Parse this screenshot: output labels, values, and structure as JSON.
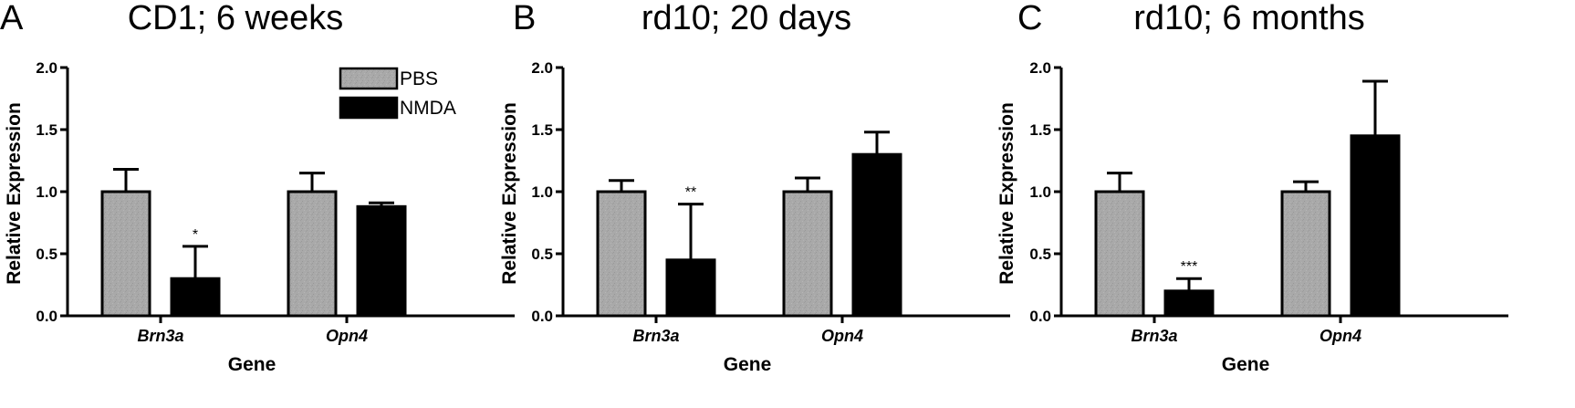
{
  "colors": {
    "PBS": "#a8a8a8",
    "NMDA": "#000000",
    "axis": "#000000"
  },
  "legend": {
    "placement": "top-right of panel A",
    "items": [
      "PBS",
      "NMDA"
    ]
  },
  "chart_data": [
    {
      "type": "bar",
      "panel": "A",
      "title": "CD1; 6 weeks",
      "xlabel": "Gene",
      "ylabel": "Relative Expression",
      "ylim": [
        0,
        2.0
      ],
      "yticks": [
        "0.0",
        "0.5",
        "1.0",
        "1.5",
        "2.0"
      ],
      "categories": [
        "Brn3a",
        "Opn4"
      ],
      "series": [
        {
          "name": "PBS",
          "values": [
            1.0,
            1.0
          ],
          "errors": [
            0.18,
            0.15
          ]
        },
        {
          "name": "NMDA",
          "values": [
            0.3,
            0.88
          ],
          "errors": [
            0.26,
            0.03
          ]
        }
      ],
      "annotations": [
        {
          "category": "Brn3a",
          "series": "NMDA",
          "text": "*"
        }
      ]
    },
    {
      "type": "bar",
      "panel": "B",
      "title": "rd10; 20 days",
      "xlabel": "Gene",
      "ylabel": "Relative Expression",
      "ylim": [
        0,
        2.0
      ],
      "yticks": [
        "0.0",
        "0.5",
        "1.0",
        "1.5",
        "2.0"
      ],
      "categories": [
        "Brn3a",
        "Opn4"
      ],
      "series": [
        {
          "name": "PBS",
          "values": [
            1.0,
            1.0
          ],
          "errors": [
            0.09,
            0.11
          ]
        },
        {
          "name": "NMDA",
          "values": [
            0.45,
            1.3
          ],
          "errors": [
            0.45,
            0.18
          ]
        }
      ],
      "annotations": [
        {
          "category": "Brn3a",
          "series": "NMDA",
          "text": "**"
        }
      ]
    },
    {
      "type": "bar",
      "panel": "C",
      "title": "rd10; 6 months",
      "xlabel": "Gene",
      "ylabel": "Relative Expression",
      "ylim": [
        0,
        2.0
      ],
      "yticks": [
        "0.0",
        "0.5",
        "1.0",
        "1.5",
        "2.0"
      ],
      "categories": [
        "Brn3a",
        "Opn4"
      ],
      "series": [
        {
          "name": "PBS",
          "values": [
            1.0,
            1.0
          ],
          "errors": [
            0.15,
            0.08
          ]
        },
        {
          "name": "NMDA",
          "values": [
            0.2,
            1.45
          ],
          "errors": [
            0.1,
            0.44
          ]
        }
      ],
      "annotations": [
        {
          "category": "Brn3a",
          "series": "NMDA",
          "text": "***"
        }
      ]
    }
  ]
}
